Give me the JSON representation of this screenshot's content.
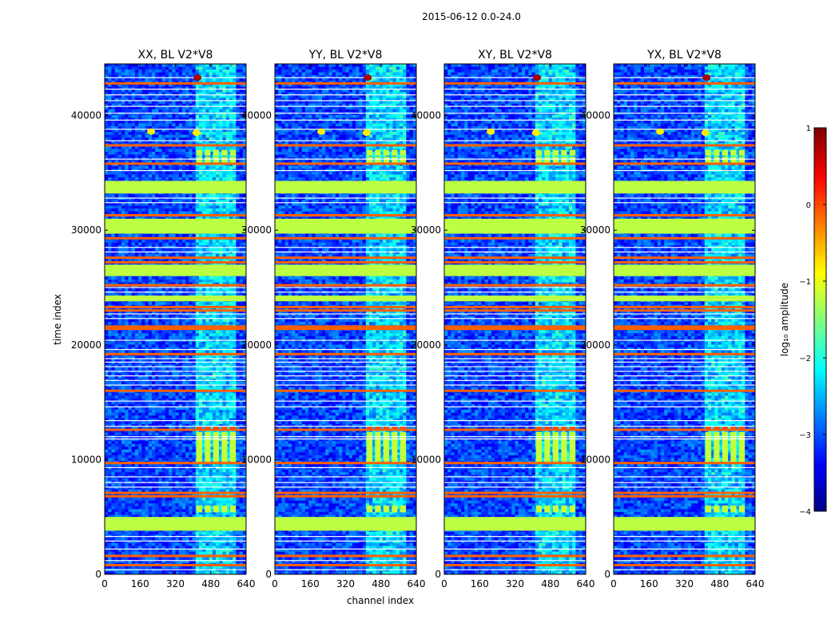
{
  "figure": {
    "suptitle": "2015-06-12 0.0-24.0"
  },
  "chart_data": {
    "type": "heatmap",
    "panels": [
      {
        "title": "XX, BL V2*V8"
      },
      {
        "title": "YY, BL V2*V8"
      },
      {
        "title": "XY, BL V2*V8"
      },
      {
        "title": "YX, BL V2*V8"
      }
    ],
    "xlabel": "channel index",
    "ylabel": "time index",
    "xlim": [
      0,
      640
    ],
    "ylim": [
      0,
      44500
    ],
    "xticks": [
      0,
      160,
      320,
      480,
      640
    ],
    "yticks": [
      0,
      10000,
      20000,
      30000,
      40000
    ],
    "colorbar": {
      "label": "log₁₀ amplitude",
      "range": [
        -4,
        1
      ],
      "ticks": [
        1,
        0,
        -1,
        -2,
        -3,
        -4
      ],
      "tick_labels": [
        "1",
        "0",
        "−1",
        "−2",
        "−3",
        "−4"
      ],
      "colormap": "jet"
    },
    "features": {
      "green_bands_time": [
        [
          3800,
          5000
        ],
        [
          26000,
          27000
        ],
        [
          29700,
          31000
        ],
        [
          33200,
          34300
        ],
        [
          23800,
          24300
        ]
      ],
      "orange_lines_time": [
        800,
        1600,
        6800,
        7100,
        9700,
        12600,
        16000,
        19200,
        21400,
        21600,
        23000,
        23300,
        25200,
        27200,
        27600,
        29300,
        31300,
        35800,
        37400,
        42800
      ],
      "white_lines_time": [
        400,
        1200,
        2200,
        2900,
        3300,
        7600,
        8000,
        8500,
        9300,
        11800,
        12000,
        12900,
        13400,
        14600,
        15100,
        16500,
        16900,
        17300,
        17700,
        18100,
        18500,
        18800,
        19600,
        20400,
        22300,
        22700,
        24600,
        25000,
        28100,
        28500,
        32400,
        32800,
        35200,
        36200,
        37800,
        38800,
        39600,
        40200,
        40800,
        41300,
        41800,
        42300,
        43300
      ],
      "rfi_channel_range": [
        410,
        600
      ],
      "bright_spots": [
        [
          420,
          43300
        ],
        [
          415,
          38500
        ],
        [
          210,
          38600
        ]
      ],
      "block_rows_time": [
        [
          5400,
          6000
        ],
        [
          9800,
          12400
        ],
        [
          12500,
          12900
        ],
        [
          35800,
          36400
        ],
        [
          36500,
          37000
        ]
      ]
    }
  }
}
